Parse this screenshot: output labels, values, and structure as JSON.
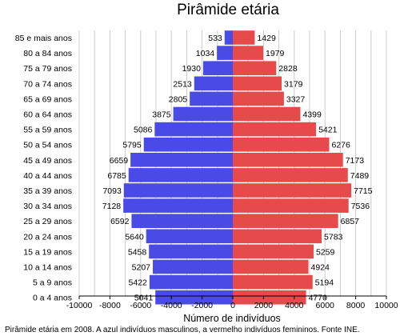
{
  "chart_data": {
    "type": "bar",
    "title": "Pirâmide etária",
    "xlabel": "Número de indivíduos",
    "caption": "Pirâmide etária em 2008. A azul indivíduos masculinos, a vermelho indivíduos femininos. Fonte INE.",
    "xlim": [
      -10000,
      10000
    ],
    "xticks": [
      -10000,
      -8000,
      -6000,
      -4000,
      -2000,
      0,
      2000,
      4000,
      6000,
      8000,
      10000
    ],
    "grid": true,
    "categories": [
      "85 e mais anos",
      "80 a 84 anos",
      "75 a 79 anos",
      "70 a 74 anos",
      "65 a 69 anos",
      "60 a 64 anos",
      "55 a 59 anos",
      "50 a 54 anos",
      "45 a 49 anos",
      "40 a 44 anos",
      "35 a 39 anos",
      "30 a 34 anos",
      "25 a 29 anos",
      "20 a 24 anos",
      "15 a 19 anos",
      "10 a 14 anos",
      "5 a 9 anos",
      "0 a 4 anos"
    ],
    "series": [
      {
        "color": "#4a4ae6",
        "values": [
          533,
          1034,
          1930,
          2513,
          2805,
          3875,
          5086,
          5795,
          6659,
          6785,
          7093,
          7128,
          6592,
          5640,
          5458,
          5207,
          5422,
          5041
        ]
      },
      {
        "color": "#e64a4a",
        "values": [
          1429,
          1979,
          2828,
          3179,
          3327,
          4399,
          5421,
          6276,
          7173,
          7489,
          7715,
          7536,
          6857,
          5783,
          5259,
          4924,
          5194,
          4770
        ]
      }
    ]
  }
}
